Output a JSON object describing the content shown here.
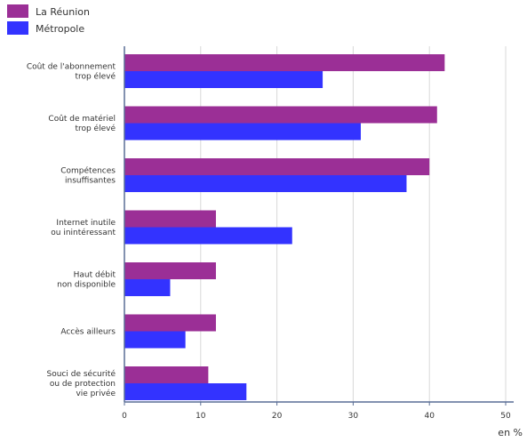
{
  "chart_data": {
    "type": "bar",
    "orientation": "horizontal",
    "categories": [
      [
        "Coût de l'abonnement",
        "trop élevé"
      ],
      [
        "Coût de matériel",
        "trop élevé"
      ],
      [
        "Compétences",
        "insuffisantes"
      ],
      [
        "Internet inutile",
        "ou inintéressant"
      ],
      [
        "Haut débit",
        "non disponible"
      ],
      [
        "Accès ailleurs"
      ],
      [
        "Souci de sécurité",
        "ou de protection",
        "vie privée"
      ]
    ],
    "series": [
      {
        "name": "La Réunion",
        "color": "#9b2f96",
        "values": [
          42,
          41,
          40,
          12,
          12,
          12,
          11
        ]
      },
      {
        "name": "Métropole",
        "color": "#3333ff",
        "values": [
          26,
          31,
          37,
          22,
          6,
          8,
          16
        ]
      }
    ],
    "xlim": [
      0,
      51
    ],
    "xticks": [
      0,
      10,
      20,
      30,
      40,
      50
    ],
    "xlabel": "en %",
    "grid": true,
    "legend": "top-left"
  }
}
